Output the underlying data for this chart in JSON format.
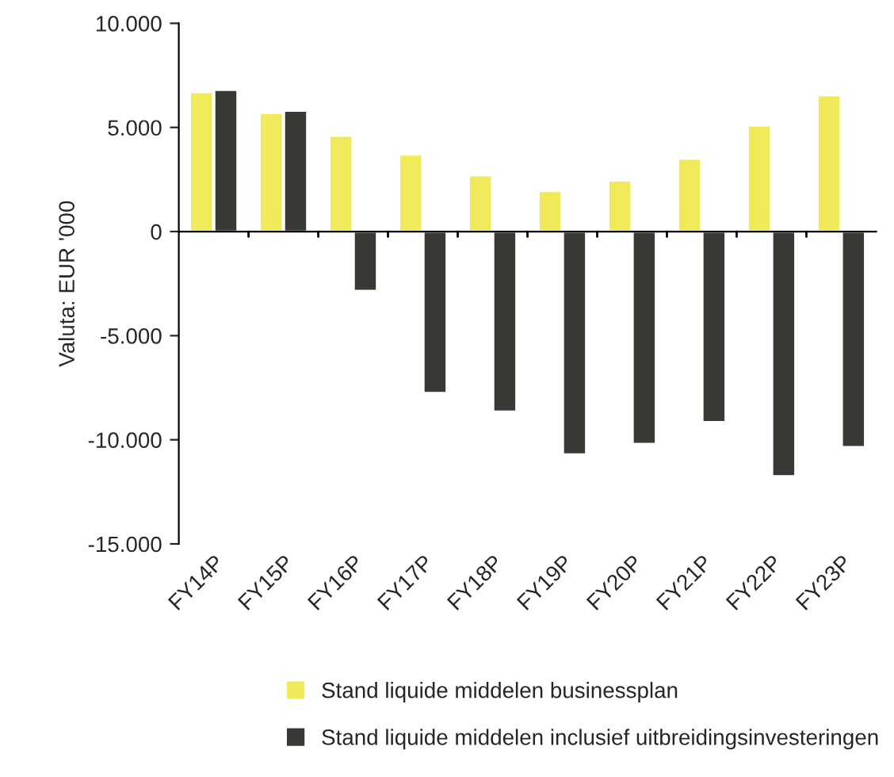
{
  "chart_data": {
    "type": "bar",
    "ylabel": "Valuta: EUR '000",
    "categories": [
      "FY14P",
      "FY15P",
      "FY16P",
      "FY17P",
      "FY18P",
      "FY19P",
      "FY20P",
      "FY21P",
      "FY22P",
      "FY23P"
    ],
    "series": [
      {
        "name": "Stand liquide middelen businessplan",
        "color": "#f0ea5a",
        "values": [
          6700,
          5700,
          4600,
          3700,
          2700,
          1950,
          2450,
          3500,
          5100,
          6550
        ]
      },
      {
        "name": "Stand liquide middelen inclusief uitbreidingsinvesteringen",
        "color": "#3b3935",
        "values": [
          6800,
          5800,
          -2850,
          -7750,
          -8650,
          -10700,
          -10200,
          -9150,
          -11750,
          -10350
        ]
      }
    ],
    "ylim": [
      -15000,
      10000
    ],
    "yticks": [
      {
        "value": -15000,
        "label": "-15.000"
      },
      {
        "value": -10000,
        "label": "-10.000"
      },
      {
        "value": -5000,
        "label": "-5.000"
      },
      0,
      {
        "value": 5000,
        "label": "5.000"
      },
      {
        "value": 10000,
        "label": "10.000"
      }
    ],
    "legend": "bottom"
  }
}
